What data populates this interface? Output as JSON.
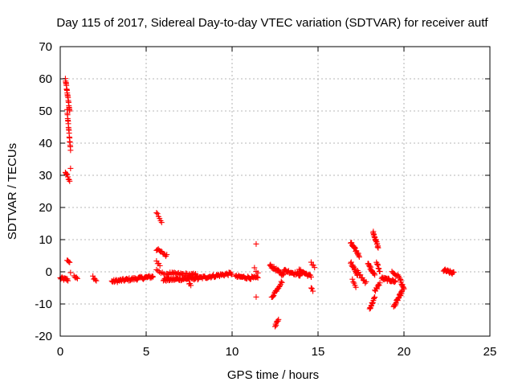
{
  "chart_data": {
    "type": "scatter",
    "title": "Day 115 of 2017, Sidereal Day-to-day VTEC variation (SDTVAR) for receiver autf",
    "xlabel": "GPS time / hours",
    "ylabel": "SDTVAR / TECUs",
    "xlim": [
      0,
      25
    ],
    "ylim": [
      -20,
      70
    ],
    "xticks": [
      0,
      5,
      10,
      15,
      20,
      25
    ],
    "yticks": [
      -20,
      -10,
      0,
      10,
      20,
      30,
      40,
      50,
      60,
      70
    ],
    "marker": "+",
    "color": "#ff0000",
    "grid": true,
    "segments": [
      {
        "x0": 0.0,
        "x1": 0.45,
        "y0": -2.0,
        "y1": -2.5,
        "n": 14
      },
      {
        "x0": 0.3,
        "x1": 0.55,
        "y0": 60.0,
        "y1": 50.0,
        "n": 22
      },
      {
        "x0": 0.4,
        "x1": 0.6,
        "y0": 50.0,
        "y1": 38.0,
        "n": 18
      },
      {
        "x0": 0.3,
        "x1": 0.55,
        "y0": 31.0,
        "y1": 28.5,
        "n": 8
      },
      {
        "x0": 0.6,
        "x1": 0.6,
        "y0": 32.0,
        "y1": 32.0,
        "n": 1
      },
      {
        "x0": 0.4,
        "x1": 0.55,
        "y0": 4.0,
        "y1": 3.0,
        "n": 4
      },
      {
        "x0": 0.6,
        "x1": 0.6,
        "y0": 0.0,
        "y1": 0.0,
        "n": 1
      },
      {
        "x0": 0.8,
        "x1": 1.0,
        "y0": -1.5,
        "y1": -2.2,
        "n": 5
      },
      {
        "x0": 1.9,
        "x1": 2.1,
        "y0": -1.5,
        "y1": -2.8,
        "n": 5
      },
      {
        "x0": 3.0,
        "x1": 5.4,
        "y0": -3.0,
        "y1": -1.5,
        "n": 60
      },
      {
        "x0": 5.6,
        "x1": 5.9,
        "y0": 18.5,
        "y1": 15.5,
        "n": 6
      },
      {
        "x0": 5.6,
        "x1": 6.2,
        "y0": 7.0,
        "y1": 5.0,
        "n": 12
      },
      {
        "x0": 5.6,
        "x1": 5.8,
        "y0": 3.5,
        "y1": 2.0,
        "n": 4
      },
      {
        "x0": 5.6,
        "x1": 6.2,
        "y0": 1.0,
        "y1": -1.5,
        "n": 8
      },
      {
        "x0": 6.0,
        "x1": 8.0,
        "y0": -2.5,
        "y1": -2.0,
        "n": 50
      },
      {
        "x0": 6.2,
        "x1": 8.0,
        "y0": -0.5,
        "y1": -1.0,
        "n": 30
      },
      {
        "x0": 7.5,
        "x1": 7.6,
        "y0": -3.5,
        "y1": -4.5,
        "n": 3
      },
      {
        "x0": 8.0,
        "x1": 10.0,
        "y0": -2.0,
        "y1": -0.5,
        "n": 45
      },
      {
        "x0": 10.2,
        "x1": 11.5,
        "y0": -1.5,
        "y1": -2.0,
        "n": 30
      },
      {
        "x0": 11.4,
        "x1": 11.4,
        "y0": 8.5,
        "y1": 8.5,
        "n": 1
      },
      {
        "x0": 11.4,
        "x1": 11.4,
        "y0": -7.5,
        "y1": -7.5,
        "n": 1
      },
      {
        "x0": 11.3,
        "x1": 11.5,
        "y0": 1.0,
        "y1": -0.5,
        "n": 3
      },
      {
        "x0": 12.2,
        "x1": 13.0,
        "y0": 2.0,
        "y1": -1.0,
        "n": 25
      },
      {
        "x0": 12.3,
        "x1": 12.9,
        "y0": -8.0,
        "y1": -3.0,
        "n": 16
      },
      {
        "x0": 12.5,
        "x1": 12.7,
        "y0": -17.0,
        "y1": -14.5,
        "n": 8
      },
      {
        "x0": 13.0,
        "x1": 14.0,
        "y0": 0.5,
        "y1": -1.0,
        "n": 25
      },
      {
        "x0": 13.9,
        "x1": 14.6,
        "y0": 0.5,
        "y1": -1.5,
        "n": 18
      },
      {
        "x0": 14.6,
        "x1": 14.8,
        "y0": 3.0,
        "y1": 1.5,
        "n": 4
      },
      {
        "x0": 14.6,
        "x1": 14.7,
        "y0": -5.0,
        "y1": -6.0,
        "n": 3
      },
      {
        "x0": 16.9,
        "x1": 17.4,
        "y0": 9.0,
        "y1": 5.0,
        "n": 20
      },
      {
        "x0": 16.9,
        "x1": 17.3,
        "y0": 3.0,
        "y1": -1.0,
        "n": 14
      },
      {
        "x0": 17.0,
        "x1": 17.2,
        "y0": -2.5,
        "y1": -5.0,
        "n": 5
      },
      {
        "x0": 17.3,
        "x1": 17.8,
        "y0": 0.0,
        "y1": -3.5,
        "n": 10
      },
      {
        "x0": 17.9,
        "x1": 18.3,
        "y0": 2.5,
        "y1": -1.0,
        "n": 18
      },
      {
        "x0": 18.2,
        "x1": 18.5,
        "y0": 12.5,
        "y1": 7.5,
        "n": 18
      },
      {
        "x0": 18.4,
        "x1": 18.6,
        "y0": 3.0,
        "y1": 0.0,
        "n": 8
      },
      {
        "x0": 18.0,
        "x1": 18.3,
        "y0": -11.5,
        "y1": -8.0,
        "n": 12
      },
      {
        "x0": 18.3,
        "x1": 18.6,
        "y0": -6.0,
        "y1": -3.5,
        "n": 8
      },
      {
        "x0": 18.7,
        "x1": 19.5,
        "y0": -2.0,
        "y1": -3.0,
        "n": 25
      },
      {
        "x0": 19.3,
        "x1": 19.8,
        "y0": 0.0,
        "y1": -2.0,
        "n": 10
      },
      {
        "x0": 19.4,
        "x1": 19.9,
        "y0": -11.0,
        "y1": -6.0,
        "n": 22
      },
      {
        "x0": 19.8,
        "x1": 20.0,
        "y0": -3.0,
        "y1": -5.5,
        "n": 8
      },
      {
        "x0": 22.3,
        "x1": 22.9,
        "y0": 0.5,
        "y1": -0.5,
        "n": 20
      }
    ]
  }
}
